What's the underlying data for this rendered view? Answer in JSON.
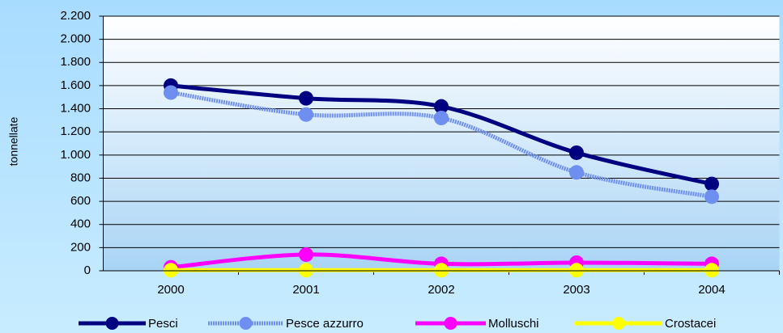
{
  "chart_data": {
    "type": "line",
    "y_label": "tonnellate",
    "categories": [
      "2000",
      "2001",
      "2002",
      "2003",
      "2004"
    ],
    "series": [
      {
        "name": "Pesci",
        "color": "#000080",
        "values": [
          1600,
          1490,
          1420,
          1020,
          750
        ]
      },
      {
        "name": "Pesce azzurro",
        "color": "#6f8ff0",
        "values": [
          1540,
          1350,
          1320,
          850,
          640
        ]
      },
      {
        "name": "Molluschi",
        "color": "#ff00ff",
        "values": [
          30,
          140,
          60,
          70,
          60
        ]
      },
      {
        "name": "Crostacei",
        "color": "#ffff00",
        "values": [
          5,
          5,
          5,
          5,
          5
        ]
      }
    ],
    "ylim": [
      0,
      2200
    ],
    "yticks": [
      0,
      200,
      400,
      600,
      800,
      {
        "value": 1000,
        "label": "1.000"
      },
      {
        "value": 1200,
        "label": "1.200"
      },
      {
        "value": 1400,
        "label": "1.400"
      },
      {
        "value": 1600,
        "label": "1.600"
      },
      {
        "value": 1800,
        "label": "1.800"
      },
      {
        "value": 2000,
        "label": "2.000"
      },
      {
        "value": 2200,
        "label": "2.200"
      }
    ],
    "grid": true,
    "legend": "bottom"
  }
}
